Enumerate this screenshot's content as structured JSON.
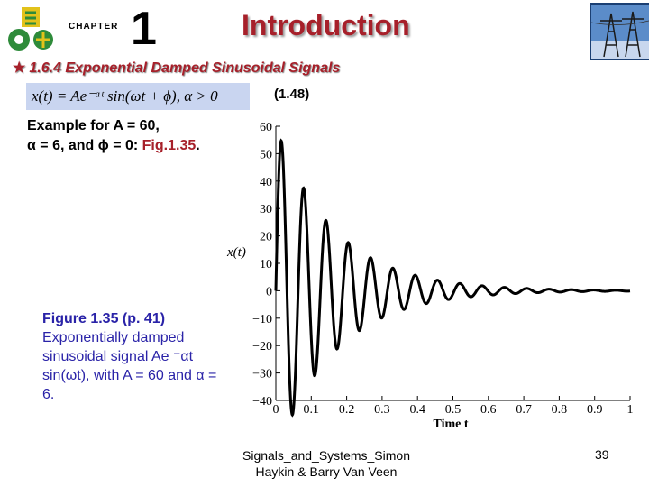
{
  "header": {
    "chapter_word": "CHAPTER",
    "chapter_number": "1",
    "title": "Introduction"
  },
  "section": {
    "heading": "1.6.4 Exponential Damped Sinusoidal Signals",
    "equation": "x(t) = Ae⁻ᵅᵗ sin(ωt + ϕ),   α > 0",
    "equation_number": "(1.48)"
  },
  "example": {
    "line1": "Example for A = 60,",
    "line2_a": "α = 6, and ϕ = 0: ",
    "line2_link": "Fig.1.35",
    "line2_end": "."
  },
  "caption": {
    "title": "Figure 1.35  (p. 41)",
    "body": "Exponentially damped sinusoidal signal Ae ⁻αt sin(ωt), with A = 60 and α = 6."
  },
  "footer": {
    "line1": "Signals_and_Systems_Simon",
    "line2": "Haykin & Barry Van Veen",
    "page": "39"
  },
  "chart_data": {
    "type": "line",
    "xlabel": "Time t",
    "ylabel": "x(t)",
    "xlim": [
      0,
      1
    ],
    "ylim": [
      -40,
      60
    ],
    "x_ticks": [
      "0",
      "0.1",
      "0.2",
      "0.3",
      "0.4",
      "0.5",
      "0.6",
      "0.7",
      "0.8",
      "0.9",
      "1"
    ],
    "y_ticks": [
      "60",
      "50",
      "40",
      "30",
      "20",
      "10",
      "0",
      "−10",
      "−20",
      "−30",
      "−40"
    ],
    "grid": false,
    "amplitude": 60,
    "alpha": 6,
    "period": 0.063,
    "series": [
      {
        "x": [
          0.016,
          0.047,
          0.079,
          0.11,
          0.142,
          0.173,
          0.205,
          0.236,
          0.268,
          0.299,
          0.331,
          0.362,
          0.394,
          0.425,
          0.457,
          0.488,
          0.52,
          0.551,
          0.583,
          0.614,
          0.646,
          0.677,
          0.709,
          0.74,
          0.772,
          0.803,
          0.835,
          0.866,
          0.898,
          0.929,
          0.961,
          0.992
        ],
        "y": [
          54.5,
          -45.2,
          37.4,
          -31.0,
          25.6,
          -21.3,
          17.6,
          -14.6,
          12.1,
          -10.0,
          8.3,
          -6.9,
          5.7,
          -4.7,
          3.9,
          -3.2,
          2.7,
          -2.2,
          1.8,
          -1.5,
          1.3,
          -1.0,
          0.9,
          -0.7,
          0.6,
          -0.5,
          0.4,
          -0.3,
          0.3,
          -0.3,
          0.2,
          -0.2
        ]
      }
    ]
  }
}
